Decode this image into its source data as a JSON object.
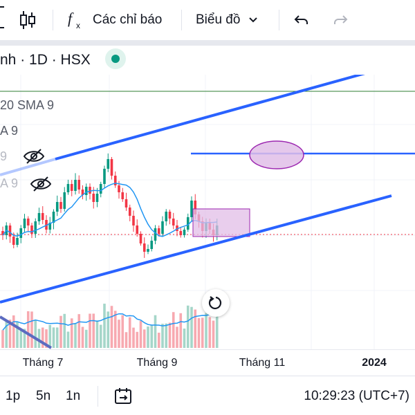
{
  "toolbar": {
    "indicators_label": "Các chỉ báo",
    "chart_type_label": "Biểu đồ"
  },
  "symbol": {
    "text": "nh · 1D · HSX",
    "market_status_color": "#089981"
  },
  "legend": {
    "line1": "20 SMA 9",
    "line2": "A 9",
    "line3": "9",
    "line4": "A 9"
  },
  "time_axis": {
    "ticks": [
      "Tháng 7",
      "Tháng 9",
      "Tháng 11",
      "2024"
    ]
  },
  "bottom_bar": {
    "ranges": [
      "1p",
      "5n",
      "1n"
    ],
    "clock": "10:29:23 (UTC+7)"
  },
  "colors": {
    "up": "#089981",
    "down": "#f23645",
    "trendline": "#2962ff",
    "sma": "#2196f3",
    "highlight": "#e1bee7",
    "highlight_border": "#9c27b0"
  },
  "chart_data": {
    "type": "candlestick",
    "candles": [
      [
        34.2,
        33.9
      ],
      [
        33.9,
        34.6
      ],
      [
        34.6,
        33.8
      ],
      [
        33.8,
        33.2
      ],
      [
        33.2,
        33.7
      ],
      [
        33.7,
        34.4
      ],
      [
        34.4,
        35.1
      ],
      [
        35.1,
        34.6
      ],
      [
        34.6,
        34.0
      ],
      [
        34.0,
        34.9
      ],
      [
        34.9,
        35.5
      ],
      [
        35.5,
        35.0
      ],
      [
        35.0,
        34.3
      ],
      [
        34.3,
        34.8
      ],
      [
        34.8,
        35.6
      ],
      [
        35.6,
        36.3
      ],
      [
        36.3,
        35.8
      ],
      [
        35.8,
        37.0
      ],
      [
        37.0,
        37.6
      ],
      [
        37.6,
        37.1
      ],
      [
        37.1,
        37.9
      ],
      [
        37.9,
        37.2
      ],
      [
        37.2,
        36.8
      ],
      [
        36.8,
        37.4
      ],
      [
        37.4,
        36.9
      ],
      [
        36.9,
        36.3
      ],
      [
        36.3,
        36.9
      ],
      [
        36.9,
        37.6
      ],
      [
        37.6,
        38.7
      ],
      [
        38.7,
        39.4
      ],
      [
        39.4,
        38.2
      ],
      [
        38.2,
        37.5
      ],
      [
        37.5,
        37.0
      ],
      [
        37.0,
        36.5
      ],
      [
        36.5,
        35.9
      ],
      [
        35.9,
        35.3
      ],
      [
        35.3,
        34.6
      ],
      [
        34.6,
        34.0
      ],
      [
        34.0,
        33.3
      ],
      [
        33.3,
        32.7
      ],
      [
        32.7,
        32.9
      ],
      [
        32.9,
        33.5
      ],
      [
        33.5,
        34.4
      ],
      [
        34.4,
        34.0
      ],
      [
        34.0,
        34.9
      ],
      [
        34.9,
        35.6
      ],
      [
        35.6,
        35.1
      ],
      [
        35.1,
        34.6
      ],
      [
        34.6,
        34.2
      ],
      [
        34.2,
        33.9
      ],
      [
        33.9,
        34.3
      ],
      [
        34.3,
        35.2
      ],
      [
        35.2,
        36.4
      ],
      [
        36.4,
        35.4
      ],
      [
        35.4,
        34.9
      ],
      [
        34.9,
        34.2
      ],
      [
        34.2,
        34.8
      ],
      [
        34.8,
        34.3
      ],
      [
        34.3,
        33.9
      ],
      [
        33.9,
        34.6
      ]
    ],
    "highlight_box_label": "",
    "highlight_ellipse_label": ""
  }
}
